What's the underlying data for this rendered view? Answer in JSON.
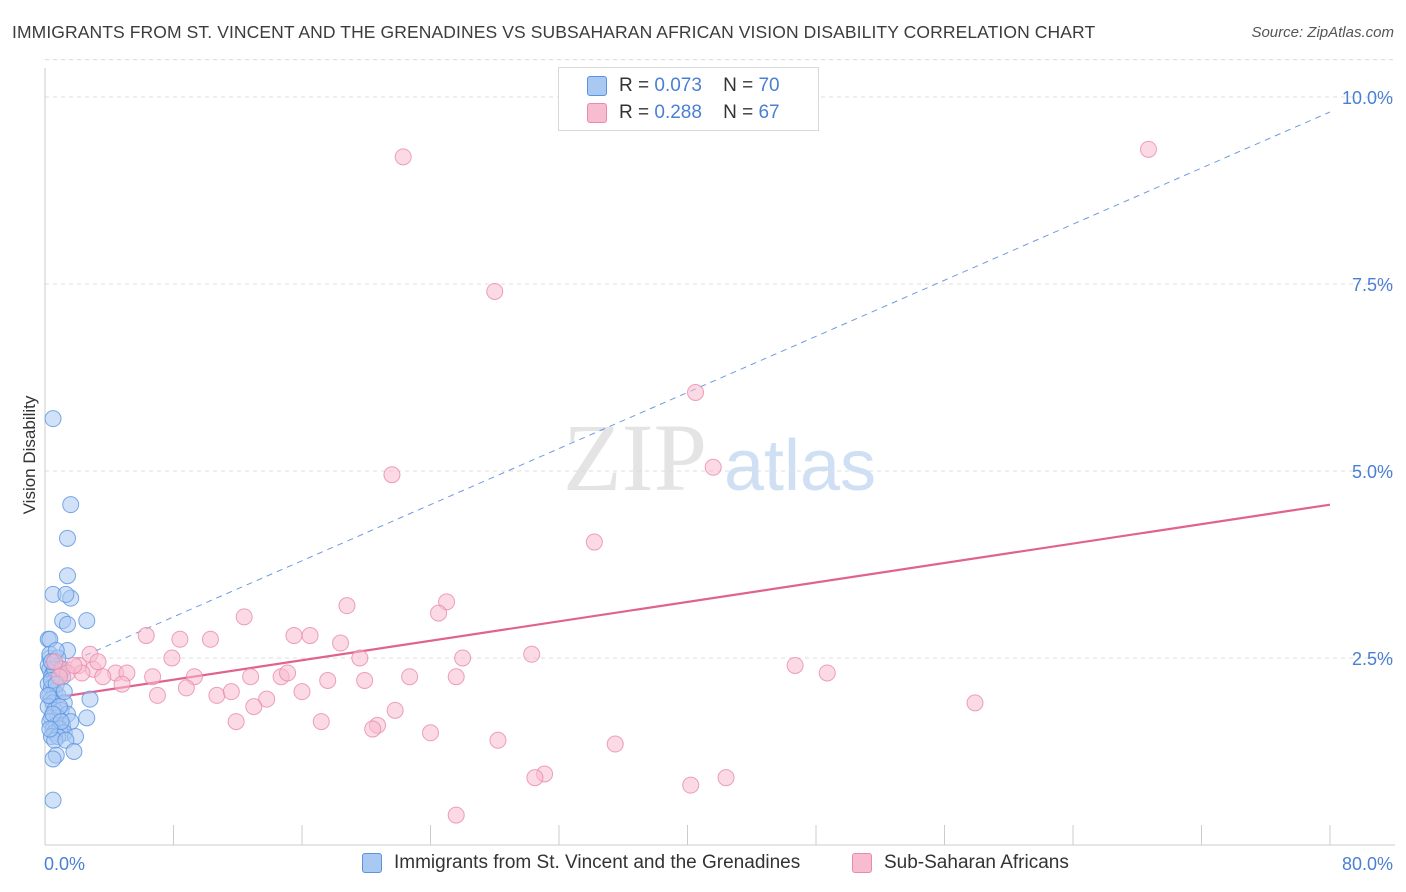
{
  "title": "IMMIGRANTS FROM ST. VINCENT AND THE GRENADINES VS SUBSAHARAN AFRICAN VISION DISABILITY CORRELATION CHART",
  "source": "Source: ZipAtlas.com",
  "watermark": {
    "zip": "ZIP",
    "atlas": "atlas"
  },
  "colors": {
    "blue_fill": "#a9c8f2",
    "blue_stroke": "#5b93e0",
    "pink_fill": "#f7bcd0",
    "pink_stroke": "#e88aaa",
    "pink_line": "#e0628f",
    "blue_line": "#6e9be0",
    "grid": "#dcdcdc",
    "tick_label": "#4a7fd4"
  },
  "legend": {
    "rows": [
      {
        "r_label": "R =",
        "r_value": "0.073",
        "n_label": "N =",
        "n_value": "70"
      },
      {
        "r_label": "R =",
        "r_value": "0.288",
        "n_label": "N =",
        "n_value": "67"
      }
    ]
  },
  "chart_data": {
    "type": "scatter",
    "title": "IMMIGRANTS FROM ST. VINCENT AND THE GRENADINES VS SUBSAHARAN AFRICAN VISION DISABILITY CORRELATION CHART",
    "xlabel": "",
    "ylabel": "Vision Disability",
    "xlim": [
      0,
      80
    ],
    "ylim": [
      0,
      10.5
    ],
    "x_tick_labels": [
      "0.0%",
      "80.0%"
    ],
    "y_ticks": [
      2.5,
      5.0,
      7.5,
      10.0
    ],
    "y_tick_labels": [
      "2.5%",
      "5.0%",
      "7.5%",
      "10.0%"
    ],
    "grid": true,
    "legend_position": "top-center",
    "series": [
      {
        "name": "Immigrants from St. Vincent and the Grenadines",
        "color": "blue",
        "points": [
          [
            0.5,
            5.7
          ],
          [
            1.6,
            4.55
          ],
          [
            1.4,
            4.1
          ],
          [
            1.4,
            3.6
          ],
          [
            1.6,
            3.3
          ],
          [
            0.5,
            3.35
          ],
          [
            1.3,
            3.35
          ],
          [
            1.1,
            3.0
          ],
          [
            2.6,
            3.0
          ],
          [
            1.4,
            2.95
          ],
          [
            0.2,
            2.75
          ],
          [
            0.3,
            2.75
          ],
          [
            1.4,
            2.6
          ],
          [
            0.3,
            2.5
          ],
          [
            0.5,
            2.45
          ],
          [
            0.7,
            2.4
          ],
          [
            0.2,
            2.4
          ],
          [
            0.3,
            2.35
          ],
          [
            0.9,
            2.3
          ],
          [
            0.5,
            2.3
          ],
          [
            0.4,
            2.25
          ],
          [
            1.1,
            2.25
          ],
          [
            0.6,
            2.2
          ],
          [
            0.2,
            2.15
          ],
          [
            0.4,
            2.1
          ],
          [
            0.6,
            2.05
          ],
          [
            0.3,
            2.0
          ],
          [
            0.8,
            2.0
          ],
          [
            0.4,
            1.95
          ],
          [
            0.5,
            1.9
          ],
          [
            1.2,
            1.9
          ],
          [
            2.8,
            1.95
          ],
          [
            0.2,
            1.85
          ],
          [
            0.6,
            1.8
          ],
          [
            1.0,
            1.8
          ],
          [
            1.4,
            1.75
          ],
          [
            0.4,
            1.7
          ],
          [
            0.8,
            1.7
          ],
          [
            2.6,
            1.7
          ],
          [
            0.3,
            1.65
          ],
          [
            0.7,
            1.6
          ],
          [
            1.1,
            1.6
          ],
          [
            1.6,
            1.65
          ],
          [
            0.5,
            1.55
          ],
          [
            0.9,
            1.55
          ],
          [
            0.6,
            1.5
          ],
          [
            1.2,
            1.5
          ],
          [
            0.4,
            1.45
          ],
          [
            0.8,
            1.45
          ],
          [
            1.9,
            1.45
          ],
          [
            0.6,
            1.4
          ],
          [
            1.3,
            1.4
          ],
          [
            1.8,
            1.25
          ],
          [
            0.7,
            1.2
          ],
          [
            0.5,
            1.15
          ],
          [
            0.5,
            0.6
          ],
          [
            0.3,
            2.55
          ],
          [
            0.8,
            2.5
          ],
          [
            0.6,
            2.35
          ],
          [
            1.0,
            2.35
          ],
          [
            0.4,
            2.2
          ],
          [
            0.7,
            2.15
          ],
          [
            0.2,
            2.0
          ],
          [
            0.9,
            1.85
          ],
          [
            0.5,
            1.75
          ],
          [
            1.0,
            1.65
          ],
          [
            0.3,
            1.55
          ],
          [
            0.7,
            2.6
          ],
          [
            0.4,
            2.45
          ],
          [
            1.2,
            2.05
          ]
        ],
        "trend_line": {
          "style": "dashed",
          "x": [
            0,
            80
          ],
          "y": [
            2.3,
            9.8
          ]
        }
      },
      {
        "name": "Sub-Saharan Africans",
        "color": "pink",
        "points": [
          [
            22.3,
            9.2
          ],
          [
            68.7,
            9.3
          ],
          [
            28.0,
            7.4
          ],
          [
            40.5,
            6.05
          ],
          [
            21.6,
            4.95
          ],
          [
            41.6,
            5.05
          ],
          [
            34.2,
            4.05
          ],
          [
            25.0,
            3.25
          ],
          [
            18.8,
            3.2
          ],
          [
            24.5,
            3.1
          ],
          [
            12.4,
            3.05
          ],
          [
            6.3,
            2.8
          ],
          [
            8.4,
            2.75
          ],
          [
            10.3,
            2.75
          ],
          [
            15.5,
            2.8
          ],
          [
            16.5,
            2.8
          ],
          [
            18.4,
            2.7
          ],
          [
            2.8,
            2.55
          ],
          [
            7.9,
            2.5
          ],
          [
            19.6,
            2.5
          ],
          [
            26.0,
            2.5
          ],
          [
            30.3,
            2.55
          ],
          [
            2.1,
            2.4
          ],
          [
            3.0,
            2.35
          ],
          [
            4.4,
            2.3
          ],
          [
            5.1,
            2.3
          ],
          [
            1.1,
            2.35
          ],
          [
            1.4,
            2.3
          ],
          [
            2.3,
            2.3
          ],
          [
            3.6,
            2.25
          ],
          [
            6.7,
            2.25
          ],
          [
            9.3,
            2.25
          ],
          [
            12.8,
            2.25
          ],
          [
            14.7,
            2.25
          ],
          [
            15.1,
            2.3
          ],
          [
            17.6,
            2.2
          ],
          [
            19.9,
            2.2
          ],
          [
            22.7,
            2.25
          ],
          [
            25.6,
            2.25
          ],
          [
            46.7,
            2.4
          ],
          [
            48.7,
            2.3
          ],
          [
            4.8,
            2.15
          ],
          [
            8.8,
            2.1
          ],
          [
            10.7,
            2.0
          ],
          [
            11.6,
            2.05
          ],
          [
            16.0,
            2.05
          ],
          [
            7.0,
            2.0
          ],
          [
            13.8,
            1.95
          ],
          [
            13.0,
            1.85
          ],
          [
            57.9,
            1.9
          ],
          [
            21.8,
            1.8
          ],
          [
            11.9,
            1.65
          ],
          [
            17.2,
            1.65
          ],
          [
            20.7,
            1.6
          ],
          [
            20.4,
            1.55
          ],
          [
            24.0,
            1.5
          ],
          [
            28.2,
            1.4
          ],
          [
            35.5,
            1.35
          ],
          [
            31.1,
            0.95
          ],
          [
            42.4,
            0.9
          ],
          [
            30.5,
            0.9
          ],
          [
            40.2,
            0.8
          ],
          [
            25.6,
            0.4
          ],
          [
            0.6,
            2.45
          ],
          [
            1.8,
            2.4
          ],
          [
            0.9,
            2.25
          ],
          [
            3.3,
            2.45
          ]
        ],
        "trend_line": {
          "style": "solid",
          "x": [
            0,
            80
          ],
          "y": [
            1.95,
            4.55
          ]
        }
      }
    ]
  },
  "bottom_legend": {
    "items": [
      {
        "label": "Immigrants from St. Vincent and the Grenadines"
      },
      {
        "label": "Sub-Saharan Africans"
      }
    ]
  }
}
